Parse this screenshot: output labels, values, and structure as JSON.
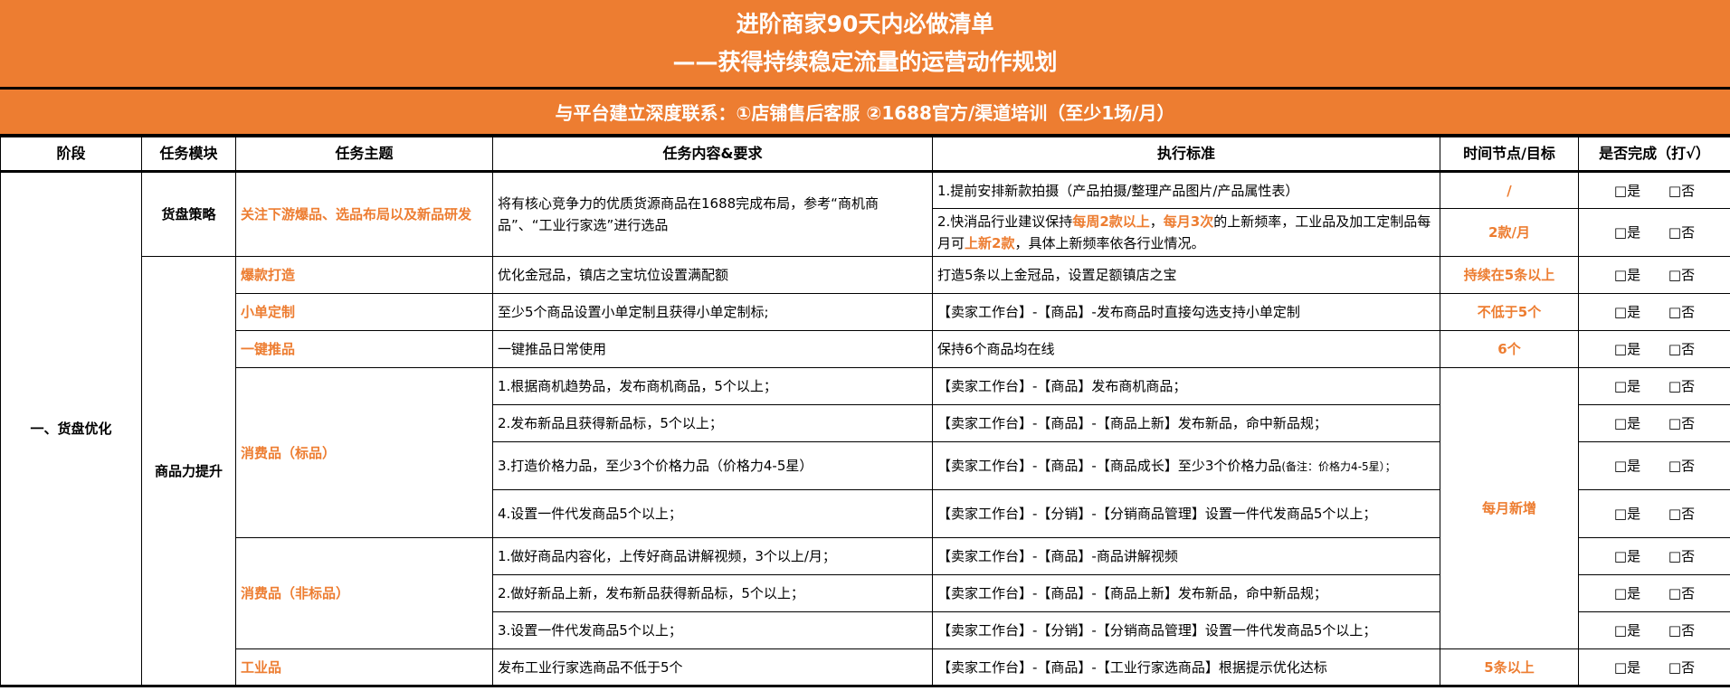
{
  "title_line1": "进阶商家90天内必做清单",
  "title_line2": "——获得持续稳定流量的运营动作规划",
  "subtitle": "与平台建立深度联系：①店铺售后客服 ②1688官方/渠道培训（至少1场/月）",
  "colors": {
    "accent": "#ED7D31"
  },
  "headers": [
    "阶段",
    "任务模块",
    "任务主题",
    "任务内容&要求",
    "执行标准",
    "时间节点/目标",
    "是否完成（打√）"
  ],
  "check": {
    "yes": "□是",
    "no": "□否"
  },
  "stage": "一、货盘优化",
  "modules": [
    "货盘策略",
    "商品力提升"
  ],
  "topics": [
    "关注下游爆品、选品布局以及新品研发",
    "爆款打造",
    "小单定制",
    "一键推品",
    "消费品（标品）",
    "消费品（非标品）",
    "工业品"
  ],
  "contents": [
    "将有核心竞争力的优质货源商品在1688完成布局，参考“商机商品”、“工业行家选”进行选品",
    "优化金冠品，镇店之宝坑位设置满配额",
    "至少5个商品设置小单定制且获得小单定制标;",
    "一键推品日常使用",
    "1.根据商机趋势品，发布商机商品，5个以上；",
    "2.发布新品且获得新品标，5个以上；",
    "3.打造价格力品，至少3个价格力品（价格力4-5星）",
    "4.设置一件代发商品5个以上；",
    "1.做好商品内容化，上传好商品讲解视频，3个以上/月；",
    "2.做好新品上新，发布新品获得新品标，5个以上；",
    "3.设置一件代发商品5个以上；",
    "发布工业行家选商品不低于5个"
  ],
  "standards": {
    "r1": "1.提前安排新款拍摄（产品拍摄/整理产品图片/产品属性表）",
    "r2": [
      {
        "t": "2.快消品行业建议保持",
        "hl": false
      },
      {
        "t": "每周2款以上",
        "hl": true
      },
      {
        "t": "，",
        "hl": false
      },
      {
        "t": "每月3次",
        "hl": true
      },
      {
        "t": "的上新频率，工业品及加工定制品每月可",
        "hl": false
      },
      {
        "t": "上新2款",
        "hl": true
      },
      {
        "t": "，具体上新频率依各行业情况。",
        "hl": false
      }
    ],
    "r3": "打造5条以上金冠品，设置足额镇店之宝",
    "r4": "【卖家工作台】-【商品】-发布商品时直接勾选支持小单定制",
    "r5": "保持6个商品均在线",
    "r6": "【卖家工作台】-【商品】发布商机商品；",
    "r7": "【卖家工作台】-【商品】-【商品上新】发布新品，命中新品规；",
    "r8": "【卖家工作台】-【商品】-【商品成长】至少3个价格力品",
    "r8_note": "(备注：价格力4-5星）；",
    "r9": "【卖家工作台】-【分销】-【分销商品管理】设置一件代发商品5个以上；",
    "r10": "【卖家工作台】-【商品】-商品讲解视频",
    "r11": "【卖家工作台】-【商品】-【商品上新】发布新品，命中新品规；",
    "r12": "【卖家工作台】-【分销】-【分销商品管理】设置一件代发商品5个以上；",
    "r13": "【卖家工作台】-【商品】-【工业行家选商品】根据提示优化达标"
  },
  "targets": [
    "/",
    "2款/月",
    "持续在5条以上",
    "不低于5个",
    "6个",
    "每月新增",
    "5条以上"
  ]
}
